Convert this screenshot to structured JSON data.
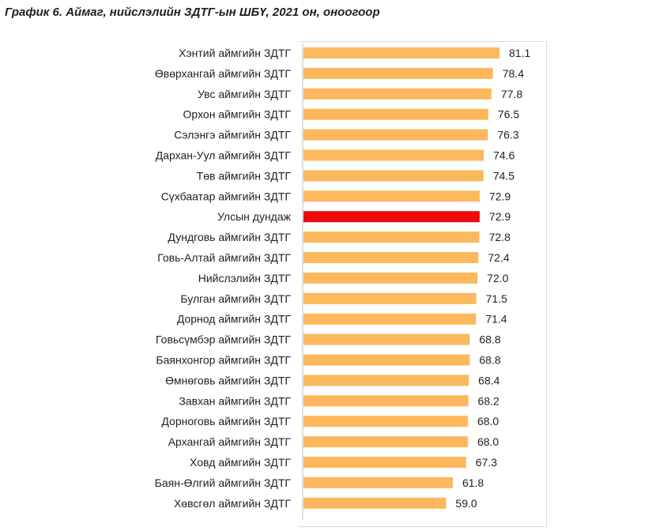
{
  "title": "График 6. Аймаг, нийслэлийн ЗДТГ-ын ШБҮ, 2021 он, оноогоор",
  "colors": {
    "bar": "#FBB85C",
    "highlight": "#EE0A0A",
    "axis": "#bfbfbf",
    "frame": "#d9d9d9"
  },
  "chart_data": {
    "type": "bar",
    "orientation": "horizontal",
    "title": "График 6. Аймаг, нийслэлийн ЗДТГ-ын ШБҮ, 2021 он, оноогоор",
    "xlabel": "",
    "ylabel": "",
    "xlim": [
      0,
      85
    ],
    "grid": false,
    "legend": "none",
    "categories": [
      "Хэнтий аймгийн ЗДТГ",
      "Өвөрхангай аймгийн ЗДТГ",
      "Увс аймгийн ЗДТГ",
      "Орхон аймгийн ЗДТГ",
      "Сэлэнгэ аймгийн ЗДТГ",
      "Дархан-Уул аймгийн ЗДТГ",
      "Төв аймгийн ЗДТГ",
      "Сүхбаатар аймгийн ЗДТГ",
      "Улсын дундаж",
      "Дундговь аймгийн ЗДТГ",
      "Говь-Алтай аймгийн ЗДТГ",
      "Нийслэлийн ЗДТГ",
      "Булган аймгийн ЗДТГ",
      "Дорнод аймгийн ЗДТГ",
      "Говьсүмбэр аймгийн ЗДТГ",
      "Баянхонгор аймгийн ЗДТГ",
      "Өмнөговь аймгийн ЗДТГ",
      "Завхан аймгийн ЗДТГ",
      "Дорноговь аймгийн ЗДТГ",
      "Архангай аймгийн ЗДТГ",
      "Ховд аймгийн ЗДТГ",
      "Баян-Өлгий аймгийн ЗДТГ",
      "Хөвсгөл аймгийн ЗДТГ"
    ],
    "values": [
      81.1,
      78.4,
      77.8,
      76.5,
      76.3,
      74.6,
      74.5,
      72.9,
      72.9,
      72.8,
      72.4,
      72.0,
      71.5,
      71.4,
      68.8,
      68.8,
      68.4,
      68.2,
      68.0,
      68.0,
      67.3,
      61.8,
      59.0
    ],
    "value_labels": [
      "81.1",
      "78.4",
      "77.8",
      "76.5",
      "76.3",
      "74.6",
      "74.5",
      "72.9",
      "72.9",
      "72.8",
      "72.4",
      "72.0",
      "71.5",
      "71.4",
      "68.8",
      "68.8",
      "68.4",
      "68.2",
      "68.0",
      "68.0",
      "67.3",
      "61.8",
      "59.0"
    ],
    "highlight_category": "Улсын дундаж"
  }
}
